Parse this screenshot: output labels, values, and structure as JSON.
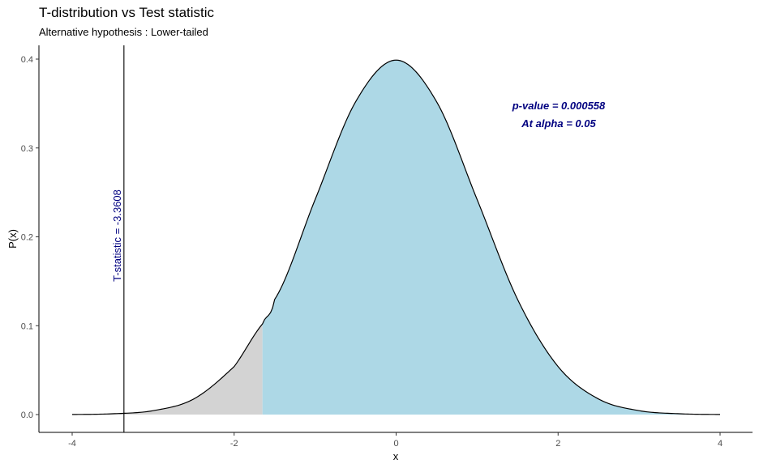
{
  "chart_data": {
    "type": "area",
    "title": "T-distribution vs Test statistic",
    "subtitle": "Alternative hypothesis : Lower-tailed",
    "xlabel": "x",
    "ylabel": "P(x)",
    "xlim": [
      -4,
      4
    ],
    "ylim": [
      0,
      0.4
    ],
    "x_ticks": [
      -4,
      -2,
      0,
      2,
      4
    ],
    "y_ticks": [
      0.0,
      0.1,
      0.2,
      0.3,
      0.4
    ],
    "x_tick_labels": [
      "-4",
      "-2",
      "0",
      "2",
      "4"
    ],
    "y_tick_labels": [
      "0.0",
      "0.1",
      "0.2",
      "0.3",
      "0.4"
    ],
    "x": [
      -4.0,
      -3.5,
      -3.0,
      -2.5,
      -2.0,
      -1.65,
      -1.5,
      -1.0,
      -0.5,
      0.0,
      0.5,
      1.0,
      1.5,
      2.0,
      2.5,
      3.0,
      3.5,
      4.0
    ],
    "y": [
      0.0001,
      0.0009,
      0.0044,
      0.0175,
      0.054,
      0.102,
      0.1295,
      0.242,
      0.352,
      0.3989,
      0.352,
      0.242,
      0.1295,
      0.054,
      0.0175,
      0.0044,
      0.0009,
      0.0001
    ],
    "critical_value": -1.65,
    "test_statistic": -3.3608,
    "rejection_region_color": "#d3d3d3",
    "acceptance_region_color": "#add8e6",
    "annotations": {
      "test_statistic_label": "T-statistic = -3.3608",
      "p_value_label": "p-value =  0.000558",
      "alpha_label": "At alpha =  0.05"
    },
    "grid": false,
    "legend": "none"
  }
}
